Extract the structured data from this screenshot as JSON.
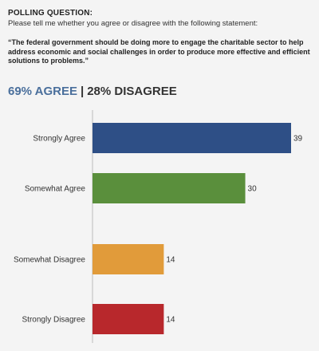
{
  "header": {
    "label": "POLLING QUESTION:",
    "prompt": "Please tell me whether you agree or disagree with the following statement:",
    "statement": "“The federal government should be doing more to engage the charitable sector to help address economic and social challenges in order to produce more effective and efficient solutions to problems.”"
  },
  "summary": {
    "agree_text": "69% AGREE",
    "separator": "|",
    "disagree_text": "28% DISAGREE",
    "agree_color": "#4a6f9c",
    "disagree_color": "#333333"
  },
  "chart_data": {
    "type": "bar",
    "orientation": "horizontal",
    "categories": [
      "Strongly Agree",
      "Somewhat Agree",
      "Somewhat Disagree",
      "Strongly Disagree"
    ],
    "values": [
      39,
      30,
      14,
      14
    ],
    "colors": [
      "#2e4f86",
      "#5a8f3c",
      "#e19b3a",
      "#b8282c"
    ],
    "xlim": [
      0,
      39
    ],
    "grid": false,
    "data_labels": true,
    "title": "",
    "xlabel": "",
    "ylabel": ""
  }
}
